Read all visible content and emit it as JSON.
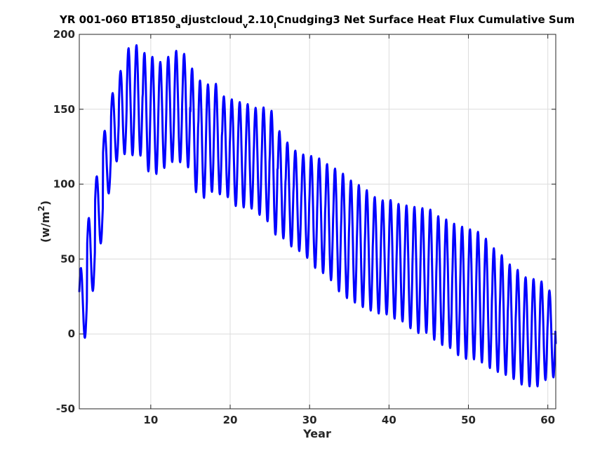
{
  "chart_data": {
    "type": "line",
    "title_parts": [
      "YR 001-060 BT1850",
      "a",
      "djustcloud",
      "v",
      "2.10",
      "l",
      "Cnudging3 Net Surface Heat Flux  Cumulative Sum"
    ],
    "xlabel": "Year",
    "ylabel_base": "(w/m",
    "ylabel_sup": "2",
    "ylabel_close": ")",
    "xlim": [
      1,
      61
    ],
    "ylim": [
      -50,
      200
    ],
    "xticks": [
      10,
      20,
      30,
      40,
      50,
      60
    ],
    "yticks": [
      -50,
      0,
      50,
      100,
      150,
      200
    ],
    "grid": true,
    "series_color": "#0000ff",
    "series": [
      {
        "sampling": "monthly; oscillation about annual envelope",
        "year_start": [
          1,
          2,
          3,
          4,
          5,
          6,
          7,
          8,
          9,
          10,
          11,
          12,
          13,
          14,
          15,
          16,
          17,
          18,
          19,
          20,
          21,
          22,
          23,
          24,
          25,
          26,
          27,
          28,
          29,
          30,
          31,
          32,
          33,
          34,
          35,
          36,
          37,
          38,
          39,
          40,
          41,
          42,
          43,
          44,
          45,
          46,
          47,
          48,
          49,
          50,
          51,
          52,
          53,
          54,
          55,
          56,
          57,
          58,
          59,
          60,
          61
        ],
        "annual_max": [
          37,
          72,
          99,
          130,
          158,
          172,
          190,
          194,
          188,
          186,
          181,
          184,
          189,
          189,
          179,
          170,
          166,
          169,
          159,
          157,
          155,
          154,
          151,
          151,
          152,
          137,
          129,
          123,
          120,
          119,
          118,
          114,
          111,
          108,
          103,
          100,
          97,
          92,
          89,
          90,
          87,
          86,
          85,
          84,
          84,
          79,
          77,
          74,
          72,
          70,
          69,
          65,
          58,
          54,
          47,
          44,
          38,
          37,
          35,
          35,
          5
        ],
        "annual_min": [
          -25,
          7,
          38,
          70,
          104,
          120,
          120,
          119,
          119,
          104,
          108,
          112,
          116,
          114,
          110,
          88,
          92,
          96,
          92,
          91,
          83,
          85,
          83,
          78,
          74,
          63,
          64,
          56,
          55,
          49,
          42,
          40,
          34,
          26,
          23,
          20,
          17,
          15,
          13,
          13,
          9,
          8,
          2,
          0,
          1,
          -6,
          -8,
          -10,
          -16,
          -17,
          -17,
          -20,
          -24,
          -26,
          -28,
          -31,
          -35,
          -35,
          -35,
          -29,
          -29
        ]
      }
    ]
  }
}
